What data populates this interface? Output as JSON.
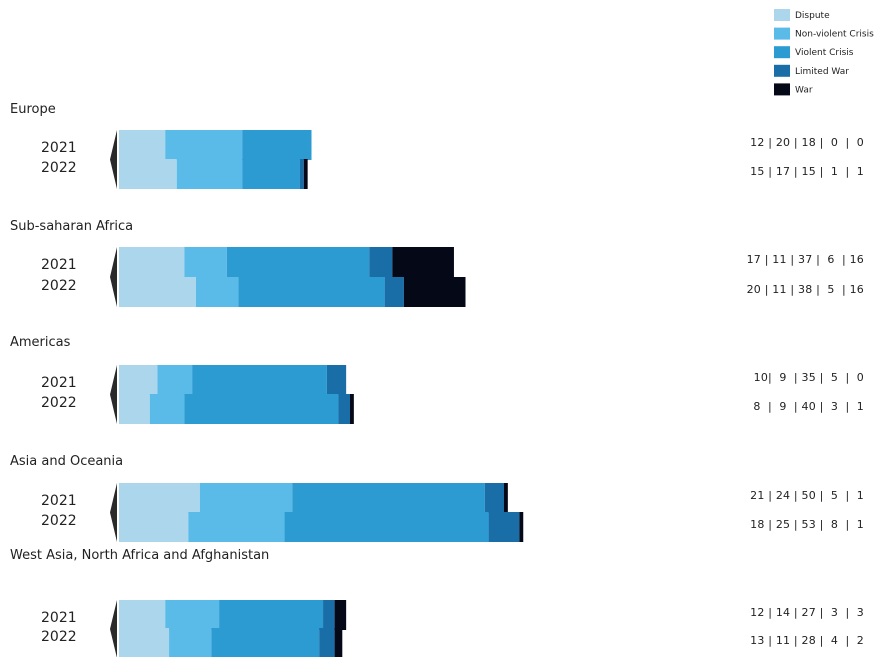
{
  "chart_data": {
    "type": "bar",
    "stacked": true,
    "orientation": "horizontal",
    "legend_position": "top-right",
    "grid": false,
    "series": [
      {
        "name": "Dispute",
        "color": "#acd6eb"
      },
      {
        "name": "Non-violent Crisis",
        "color": "#5bbbe8"
      },
      {
        "name": "Violent Crisis",
        "color": "#2b9bd2"
      },
      {
        "name": "Limited War",
        "color": "#196ea8"
      },
      {
        "name": "War",
        "color": "#050817"
      }
    ],
    "regions": [
      {
        "name": "Europe",
        "rows": [
          {
            "year": "2021",
            "values": [
              12,
              20,
              18,
              0,
              0
            ],
            "label": "12 | 20 | 18 |  0  |  0"
          },
          {
            "year": "2022",
            "values": [
              15,
              17,
              15,
              1,
              1
            ],
            "label": "15 | 17 | 15 |  1  |  1"
          }
        ]
      },
      {
        "name": "Sub-saharan Africa",
        "rows": [
          {
            "year": "2021",
            "values": [
              17,
              11,
              37,
              6,
              16
            ],
            "label": "17 | 11 | 37 |  6  | 16"
          },
          {
            "year": "2022",
            "values": [
              20,
              11,
              38,
              5,
              16
            ],
            "label": "20 | 11 | 38 |  5  | 16"
          }
        ]
      },
      {
        "name": "Americas",
        "rows": [
          {
            "year": "2021",
            "values": [
              10,
              9,
              35,
              5,
              0
            ],
            "label": "10|  9  | 35 |  5  |  0"
          },
          {
            "year": "2022",
            "values": [
              8,
              9,
              40,
              3,
              1
            ],
            "label": "8  |  9  | 40 |  3  |  1"
          }
        ]
      },
      {
        "name": "Asia and Oceania",
        "rows": [
          {
            "year": "2021",
            "values": [
              21,
              24,
              50,
              5,
              1
            ],
            "label": "21 | 24 | 50 |  5  |  1"
          },
          {
            "year": "2022",
            "values": [
              18,
              25,
              53,
              8,
              1
            ],
            "label": "18 | 25 | 53 |  8  |  1"
          }
        ]
      },
      {
        "name": "West Asia, North Africa and Afghanistan",
        "rows": [
          {
            "year": "2021",
            "values": [
              12,
              14,
              27,
              3,
              3
            ],
            "label": "12 | 14 | 27 |  3  |  3"
          },
          {
            "year": "2022",
            "values": [
              13,
              11,
              28,
              4,
              2
            ],
            "label": "13 | 11 | 28 |  4  |  2"
          }
        ]
      }
    ]
  }
}
